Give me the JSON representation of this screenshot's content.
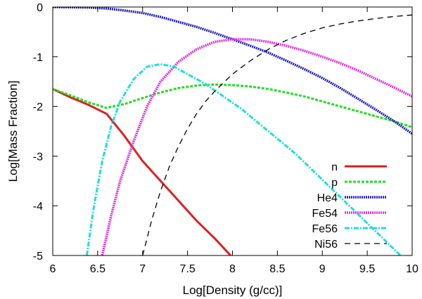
{
  "chart_data": {
    "type": "line",
    "title": "",
    "xlabel": "Log[Density (g/cc)]",
    "ylabel": "Log[Mass Fraction]",
    "xlim": [
      6,
      10
    ],
    "ylim": [
      -5,
      0
    ],
    "grid": false,
    "legend_position": "bottom-right",
    "x_ticks": [
      "6",
      "6.5",
      "7",
      "7.5",
      "8",
      "8.5",
      "9",
      "9.5",
      "10"
    ],
    "y_ticks": [
      "0",
      "-1",
      "-2",
      "-3",
      "-4",
      "-5"
    ],
    "series": [
      {
        "name": "n",
        "color": "#dd1f1f",
        "style": "solid",
        "x": [
          6.0,
          6.2,
          6.4,
          6.6,
          6.8,
          7.0,
          7.2,
          7.4,
          7.6,
          7.8,
          7.98
        ],
        "y": [
          -1.65,
          -1.82,
          -1.97,
          -2.15,
          -2.6,
          -3.1,
          -3.5,
          -3.9,
          -4.3,
          -4.65,
          -5.0
        ]
      },
      {
        "name": "p",
        "color": "#22dd22",
        "style": "dashed",
        "x": [
          6.0,
          6.2,
          6.4,
          6.6,
          6.8,
          7.0,
          7.2,
          7.4,
          7.6,
          7.8,
          8.0,
          8.2,
          8.4,
          8.6,
          8.8,
          9.0,
          9.2,
          9.4,
          9.6,
          9.8,
          10.0
        ],
        "y": [
          -1.65,
          -1.78,
          -1.92,
          -2.03,
          -1.95,
          -1.83,
          -1.72,
          -1.63,
          -1.58,
          -1.56,
          -1.57,
          -1.6,
          -1.65,
          -1.72,
          -1.8,
          -1.9,
          -2.0,
          -2.1,
          -2.2,
          -2.3,
          -2.42
        ]
      },
      {
        "name": "He4",
        "color": "#2222bb",
        "style": "dotted",
        "x": [
          6.0,
          6.4,
          6.6,
          6.8,
          7.0,
          7.2,
          7.4,
          7.6,
          7.8,
          8.0,
          8.2,
          8.4,
          8.6,
          8.8,
          9.0,
          9.2,
          9.4,
          9.6,
          9.8,
          10.0
        ],
        "y": [
          0.0,
          -0.01,
          -0.03,
          -0.07,
          -0.12,
          -0.2,
          -0.3,
          -0.4,
          -0.52,
          -0.65,
          -0.78,
          -0.92,
          -1.08,
          -1.25,
          -1.43,
          -1.63,
          -1.85,
          -2.07,
          -2.3,
          -2.55
        ]
      },
      {
        "name": "Fe54",
        "color": "#dd33dd",
        "style": "dotted",
        "x": [
          6.55,
          6.65,
          6.75,
          6.9,
          7.05,
          7.2,
          7.4,
          7.6,
          7.8,
          8.0,
          8.2,
          8.4,
          8.6,
          8.8,
          9.0,
          9.2,
          9.4,
          9.6,
          9.8,
          10.0
        ],
        "y": [
          -5.0,
          -4.2,
          -3.5,
          -2.7,
          -2.0,
          -1.5,
          -1.1,
          -0.85,
          -0.7,
          -0.65,
          -0.65,
          -0.7,
          -0.78,
          -0.88,
          -1.0,
          -1.13,
          -1.28,
          -1.45,
          -1.62,
          -1.8
        ]
      },
      {
        "name": "Fe56",
        "color": "#22dddd",
        "style": "dash-dot",
        "x": [
          6.38,
          6.45,
          6.55,
          6.65,
          6.75,
          6.9,
          7.05,
          7.2,
          7.35,
          7.5,
          7.7,
          7.9,
          8.1,
          8.3,
          8.5,
          8.7,
          8.9,
          9.1,
          9.3,
          9.5,
          9.7,
          9.87
        ],
        "y": [
          -5.0,
          -4.1,
          -3.1,
          -2.4,
          -1.9,
          -1.45,
          -1.2,
          -1.15,
          -1.2,
          -1.35,
          -1.55,
          -1.8,
          -2.05,
          -2.35,
          -2.65,
          -2.95,
          -3.3,
          -3.65,
          -4.0,
          -4.35,
          -4.7,
          -5.0
        ]
      },
      {
        "name": "Ni56",
        "color": "#000000",
        "style": "dashed-black",
        "x": [
          7.0,
          7.1,
          7.2,
          7.3,
          7.4,
          7.5,
          7.6,
          7.7,
          7.8,
          8.0,
          8.2,
          8.4,
          8.6,
          8.8,
          9.0,
          9.2,
          9.4,
          9.6,
          9.8,
          10.0
        ],
        "y": [
          -5.0,
          -4.3,
          -3.7,
          -3.2,
          -2.8,
          -2.45,
          -2.15,
          -1.9,
          -1.7,
          -1.35,
          -1.08,
          -0.85,
          -0.67,
          -0.53,
          -0.42,
          -0.34,
          -0.28,
          -0.23,
          -0.19,
          -0.16
        ]
      }
    ]
  }
}
